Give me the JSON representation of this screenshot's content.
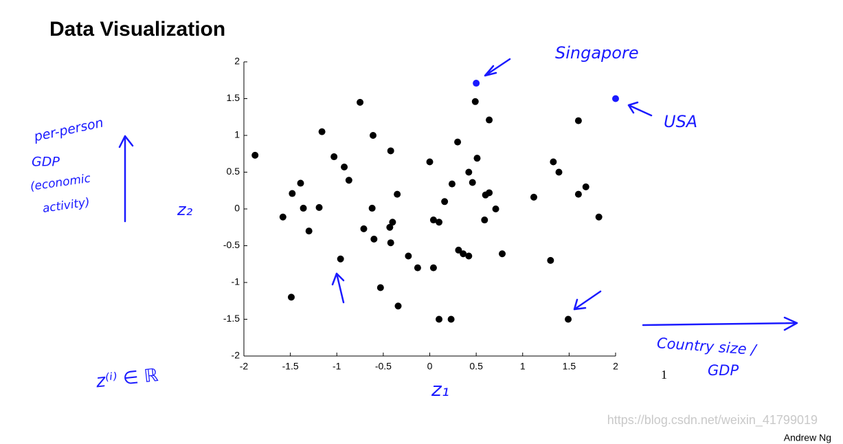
{
  "chart_data": {
    "type": "scatter",
    "title": "Data Visualization",
    "xlabel": "z₁",
    "ylabel": "z₂",
    "xlim": [
      -2,
      2
    ],
    "ylim": [
      -2,
      2
    ],
    "xticks": [
      -2,
      -1.5,
      -1,
      -0.5,
      0,
      0.5,
      1,
      1.5,
      2
    ],
    "yticks": [
      -2,
      -1.5,
      -1,
      -0.5,
      0,
      0.5,
      1,
      1.5,
      2
    ],
    "series": [
      {
        "color": "#000000",
        "x": [
          -1.88,
          -0.75,
          0.49,
          0.64,
          1.6,
          -1.16,
          -0.61,
          0.3,
          -0.42,
          -1.03,
          1.33,
          0,
          0.51,
          -0.92,
          0.42,
          1.39,
          -0.87,
          -1.39,
          0.24,
          0.46,
          1.68,
          -1.48,
          -0.35,
          0.64,
          0.6,
          1.6,
          1.12,
          0.16,
          -1.36,
          -1.19,
          -0.62,
          0.71,
          -1.58,
          1.82,
          0.04,
          0.59,
          0.1,
          -0.4,
          -0.43,
          -1.3,
          -0.71,
          -0.6,
          -0.42,
          0.31,
          0.36,
          0.42,
          -0.23,
          0.78,
          -0.96,
          1.3,
          -0.13,
          0.04,
          -0.53,
          -1.49,
          -0.34,
          0.1,
          0.23,
          1.49
        ],
        "values": [
          0.73,
          1.45,
          1.46,
          1.21,
          1.2,
          1.05,
          1.0,
          0.91,
          0.79,
          0.71,
          0.64,
          0.64,
          0.69,
          0.57,
          0.5,
          0.5,
          0.39,
          0.35,
          0.34,
          0.36,
          0.3,
          0.21,
          0.2,
          0.22,
          0.19,
          0.2,
          0.16,
          0.1,
          0.01,
          0.02,
          0.01,
          0,
          -0.11,
          -0.11,
          -0.15,
          -0.15,
          -0.18,
          -0.18,
          -0.25,
          -0.3,
          -0.27,
          -0.41,
          -0.46,
          -0.56,
          -0.61,
          -0.64,
          -0.64,
          -0.61,
          -0.68,
          -0.7,
          -0.8,
          -0.8,
          -1.07,
          -1.2,
          -1.32,
          -1.5,
          -1.5,
          -1.5
        ]
      },
      {
        "color": "#1a1aff",
        "x": [
          0.5,
          2.0
        ],
        "values": [
          1.71,
          1.5
        ]
      }
    ],
    "annotations": {
      "singapore": "Singapore",
      "usa": "USA",
      "per_person": "per-person",
      "gdp": "GDP",
      "economic": "(economic",
      "activity": "activity)",
      "country": "Country size /",
      "gdp2": "GDP",
      "z_def": "z⁽ⁱ⁾ ∈ ℝ",
      "one": "1"
    }
  },
  "footer": {
    "author": "Andrew Ng",
    "watermark": "https://blog.csdn.net/weixin_41799019"
  }
}
